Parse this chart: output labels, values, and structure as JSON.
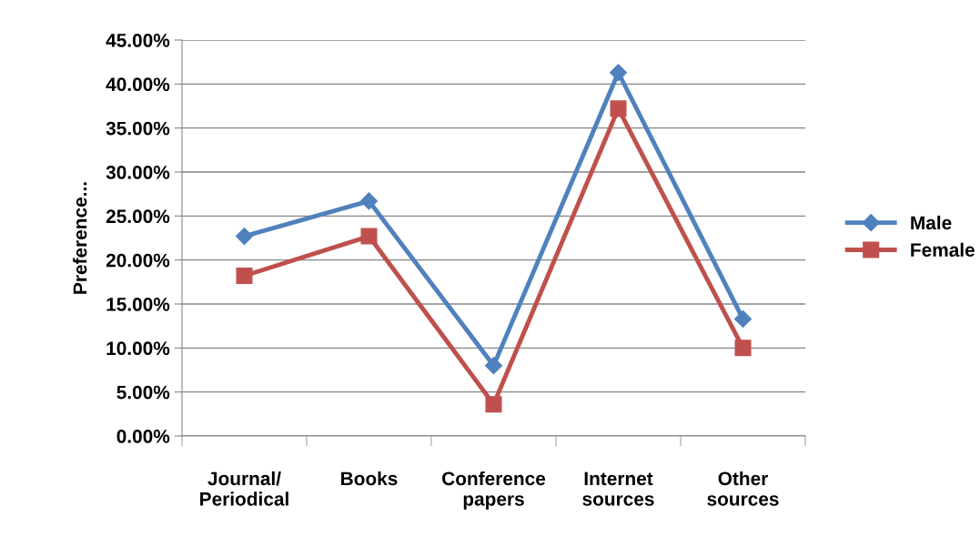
{
  "chart_data": {
    "type": "line",
    "ylabel": "Preference...",
    "categories": [
      "Journal/\nPeriodical",
      "Books",
      "Conference\npapers",
      "Internet\nsources",
      "Other\nsources"
    ],
    "series": [
      {
        "name": "Male",
        "color": "#4f81bd",
        "marker": "diamond",
        "values": [
          22.7,
          26.7,
          8.0,
          41.3,
          13.3
        ]
      },
      {
        "name": "Female",
        "color": "#c0504d",
        "marker": "square",
        "values": [
          18.2,
          22.7,
          3.6,
          37.2,
          10.0
        ]
      }
    ],
    "ylim": [
      0,
      45
    ],
    "yticks": [
      {
        "value": 0,
        "label": "0.00%"
      },
      {
        "value": 5,
        "label": "5.00%"
      },
      {
        "value": 10,
        "label": "10.00%"
      },
      {
        "value": 15,
        "label": "15.00%"
      },
      {
        "value": 20,
        "label": "20.00%"
      },
      {
        "value": 25,
        "label": "25.00%"
      },
      {
        "value": 30,
        "label": "30.00%"
      },
      {
        "value": 35,
        "label": "35.00%"
      },
      {
        "value": 40,
        "label": "40.00%"
      },
      {
        "value": 45,
        "label": "45.00%"
      }
    ],
    "grid": "y",
    "legend": "right",
    "line_style": "solid"
  }
}
